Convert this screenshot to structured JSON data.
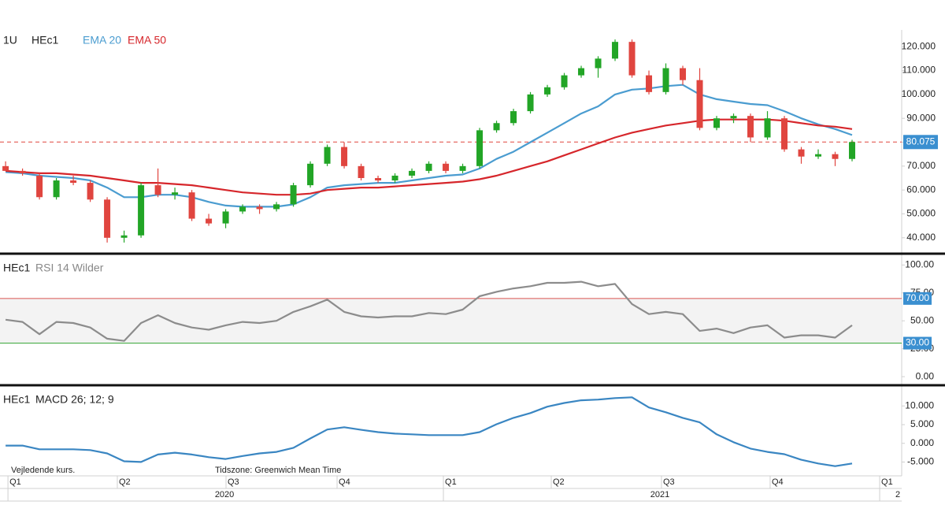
{
  "chart_data": [
    {
      "type": "candlestick",
      "interval": "1U",
      "title": "HEc1",
      "series": [
        {
          "name": "HEc1",
          "up_color": "#22a526",
          "down_color": "#e0453f",
          "open": [
            70,
            68,
            66,
            57,
            64,
            63,
            56,
            40,
            41,
            62,
            58,
            59,
            48,
            46,
            51,
            53,
            52,
            54,
            62,
            71,
            78,
            70,
            65,
            64,
            66,
            68,
            71,
            68,
            70,
            85,
            88,
            93,
            100,
            103,
            108,
            111,
            115,
            122,
            108,
            101,
            111,
            106,
            86,
            90,
            91,
            82,
            90,
            77,
            74,
            75,
            73
          ],
          "high": [
            72,
            69,
            67,
            65,
            66,
            64,
            57,
            43,
            63,
            69,
            61,
            60,
            50,
            52,
            54,
            54,
            55,
            63,
            72,
            79,
            80,
            71,
            66,
            67,
            69,
            72,
            72,
            71,
            86,
            89,
            94,
            101,
            104,
            109,
            112,
            116,
            123,
            123,
            110,
            113,
            112,
            111,
            91,
            92,
            92,
            93,
            91,
            78,
            77,
            76,
            81
          ],
          "low": [
            68,
            66,
            56,
            56,
            62,
            55,
            38,
            38,
            40,
            57,
            56,
            47,
            45,
            44,
            50,
            50,
            51,
            53,
            61,
            70,
            69,
            64,
            63,
            63,
            65,
            67,
            67,
            67,
            69,
            84,
            87,
            92,
            99,
            102,
            107,
            107,
            114,
            107,
            100,
            100,
            104,
            85,
            85,
            88,
            80,
            81,
            76,
            71,
            73,
            70,
            72
          ],
          "close": [
            68,
            67,
            57,
            64,
            63,
            56,
            40,
            41,
            62,
            58,
            59,
            48,
            46,
            51,
            53,
            52,
            54,
            62,
            71,
            78,
            70,
            65,
            64,
            66,
            68,
            71,
            68,
            70,
            85,
            88,
            93,
            100,
            103,
            108,
            111,
            115,
            122,
            108,
            101,
            111,
            106,
            86,
            90,
            91,
            82,
            90,
            77,
            74,
            75,
            73,
            80.075
          ]
        }
      ],
      "lines": [
        {
          "name": "EMA 20",
          "color": "#4a9cd0",
          "values": [
            67.5,
            67,
            66,
            65.5,
            65,
            64,
            61,
            57,
            57,
            58,
            58,
            57,
            55,
            53.5,
            53,
            53,
            53,
            54,
            57,
            61,
            62,
            62.5,
            63,
            63,
            64,
            65,
            66,
            66.5,
            69,
            73,
            76,
            80,
            84,
            88,
            92,
            95,
            100,
            102,
            102.5,
            103.5,
            104,
            100,
            98,
            97,
            96,
            95.5,
            93,
            90,
            87.5,
            85.5,
            83
          ]
        },
        {
          "name": "EMA 50",
          "color": "#d6262b",
          "values": [
            68,
            67.5,
            67,
            67,
            66.5,
            66,
            65,
            64,
            63,
            63,
            62.5,
            62,
            61,
            60,
            59,
            58.5,
            58,
            58,
            58.5,
            60,
            60.5,
            61,
            61,
            61.5,
            62,
            62.5,
            63,
            63.5,
            64.5,
            66,
            68,
            70,
            72,
            74.5,
            77,
            79.5,
            82,
            84,
            85.5,
            87,
            88,
            89,
            89.5,
            89.5,
            89.5,
            89.5,
            89,
            88,
            87,
            86.5,
            85.5
          ]
        }
      ],
      "last_price": 80.075,
      "last_price_color": "#e0453f",
      "last_price_box": "#3a8fd0",
      "ylim": [
        34,
        127
      ],
      "yticks": [
        {
          "value": 40,
          "label": "40.000"
        },
        {
          "value": 50,
          "label": "50.000"
        },
        {
          "value": 60,
          "label": "60.000"
        },
        {
          "value": 70,
          "label": "70.000"
        },
        {
          "value": 80,
          "label": "80.000"
        },
        {
          "value": 90,
          "label": "90.000"
        },
        {
          "value": 100,
          "label": "100.000"
        },
        {
          "value": 110,
          "label": "110.000"
        },
        {
          "value": 120,
          "label": "120.000"
        }
      ]
    },
    {
      "type": "line",
      "title": "HEc1",
      "series": [
        {
          "name": "RSI 14 Wilder",
          "color": "#8c8c8c",
          "values": [
            51,
            49,
            38,
            49,
            48,
            44,
            34,
            32,
            48,
            55,
            48,
            44,
            42,
            46,
            49,
            48,
            50,
            58,
            63,
            69,
            58,
            54,
            53,
            54,
            54,
            57,
            56,
            60,
            72,
            76,
            79,
            81,
            84,
            84,
            85,
            81,
            83,
            65,
            56,
            58,
            56,
            41,
            43,
            39,
            44,
            46,
            35,
            37,
            37,
            35,
            46
          ]
        }
      ],
      "levels": [
        {
          "value": 70,
          "label": "70.00",
          "color": "#d9534f"
        },
        {
          "value": 30,
          "label": "30.00",
          "color": "#3aa83a"
        }
      ],
      "level_fill": "#f3f3f3",
      "level_box": "#3a8fd0",
      "ylim": [
        -7,
        108
      ],
      "yticks": [
        {
          "value": 0,
          "label": "0.00"
        },
        {
          "value": 25,
          "label": "25.00"
        },
        {
          "value": 50,
          "label": "50.00"
        },
        {
          "value": 75,
          "label": "75.00"
        },
        {
          "value": 100,
          "label": "100.00"
        }
      ]
    },
    {
      "type": "line",
      "title": "HEc1",
      "series": [
        {
          "name": "MACD 26; 12; 9",
          "color": "#3a86c2",
          "values": [
            -0.6,
            -0.6,
            -1.6,
            -1.6,
            -1.6,
            -1.8,
            -2.7,
            -4.8,
            -5.0,
            -3.0,
            -2.5,
            -3.0,
            -3.7,
            -4.2,
            -3.4,
            -2.7,
            -2.3,
            -1.2,
            1.3,
            3.7,
            4.3,
            3.6,
            3.0,
            2.6,
            2.4,
            2.2,
            2.2,
            2.2,
            3.0,
            5.1,
            6.8,
            8.1,
            9.8,
            10.8,
            11.5,
            11.7,
            12.1,
            12.3,
            9.6,
            8.3,
            6.8,
            5.6,
            2.4,
            0.3,
            -1.4,
            -2.3,
            -2.9,
            -4.4,
            -5.4,
            -6.1,
            -5.4
          ]
        }
      ],
      "ylim": [
        -8.7,
        14.9
      ],
      "yticks": [
        {
          "value": -5,
          "label": "-5.000"
        },
        {
          "value": 0,
          "label": "0.000"
        },
        {
          "value": 5,
          "label": "5.000"
        },
        {
          "value": 10,
          "label": "10.000"
        }
      ],
      "notes": [
        "Vejledende kurs.",
        "Tidszone: Greenwich Mean Time"
      ]
    }
  ],
  "time_axis": {
    "xlim": [
      -0.33,
      52.93
    ],
    "quarters": [
      {
        "value": 0.14,
        "label": "Q1"
      },
      {
        "value": 6.6,
        "label": "Q2"
      },
      {
        "value": 13.02,
        "label": "Q3"
      },
      {
        "value": 19.58,
        "label": "Q4"
      },
      {
        "value": 25.86,
        "label": "Q1"
      },
      {
        "value": 32.23,
        "label": "Q2"
      },
      {
        "value": 38.74,
        "label": "Q3"
      },
      {
        "value": 45.16,
        "label": "Q4"
      },
      {
        "value": 51.63,
        "label": "Q1"
      }
    ],
    "years": [
      {
        "value": 12.93,
        "label": "2020"
      },
      {
        "value": 38.65,
        "label": "2021"
      },
      {
        "value": 52.7,
        "label": "2"
      }
    ]
  }
}
